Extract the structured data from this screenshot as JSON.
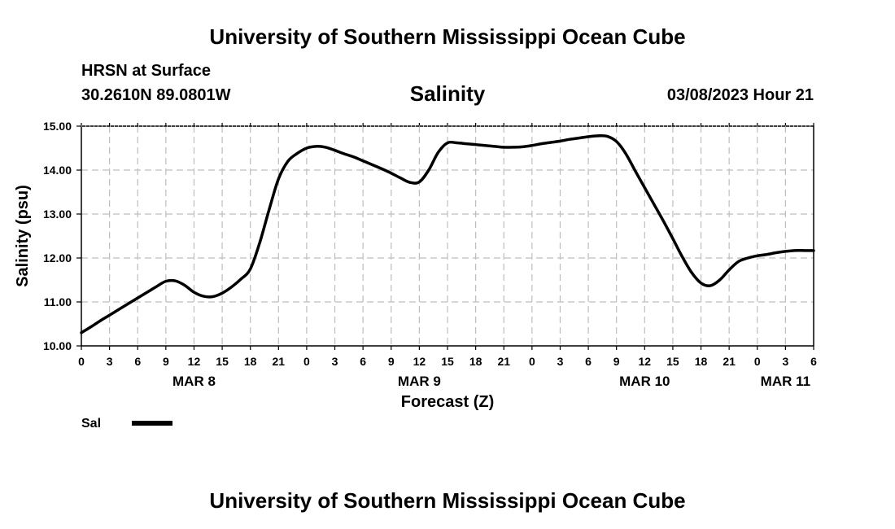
{
  "header": {
    "title": "University of Southern Mississippi Ocean Cube",
    "station": "HRSN at Surface",
    "coordinates": "30.2610N  89.0801W",
    "run_time": "03/08/2023 Hour 21"
  },
  "footer": {
    "title": "University of Southern Mississippi Ocean Cube"
  },
  "chart_data": {
    "type": "line",
    "title": "Salinity",
    "xlabel": "Forecast (Z)",
    "ylabel": "Salinity (psu)",
    "x_unit": "hours from 00Z MAR 8",
    "xlim": [
      0,
      78
    ],
    "ylim": [
      10.0,
      15.0
    ],
    "grid": true,
    "y_ticks": [
      "10.00",
      "11.00",
      "12.00",
      "13.00",
      "14.00",
      "15.00"
    ],
    "x_ticks": [
      {
        "x": 0,
        "label": "0"
      },
      {
        "x": 3,
        "label": "3"
      },
      {
        "x": 6,
        "label": "6"
      },
      {
        "x": 9,
        "label": "9"
      },
      {
        "x": 12,
        "label": "12"
      },
      {
        "x": 15,
        "label": "15"
      },
      {
        "x": 18,
        "label": "18"
      },
      {
        "x": 21,
        "label": "21"
      },
      {
        "x": 24,
        "label": "0"
      },
      {
        "x": 27,
        "label": "3"
      },
      {
        "x": 30,
        "label": "6"
      },
      {
        "x": 33,
        "label": "9"
      },
      {
        "x": 36,
        "label": "12"
      },
      {
        "x": 39,
        "label": "15"
      },
      {
        "x": 42,
        "label": "18"
      },
      {
        "x": 45,
        "label": "21"
      },
      {
        "x": 48,
        "label": "0"
      },
      {
        "x": 51,
        "label": "3"
      },
      {
        "x": 54,
        "label": "6"
      },
      {
        "x": 57,
        "label": "9"
      },
      {
        "x": 60,
        "label": "12"
      },
      {
        "x": 63,
        "label": "15"
      },
      {
        "x": 66,
        "label": "18"
      },
      {
        "x": 69,
        "label": "21"
      },
      {
        "x": 72,
        "label": "0"
      },
      {
        "x": 75,
        "label": "3"
      },
      {
        "x": 78,
        "label": "6"
      }
    ],
    "date_labels": [
      {
        "x": 12,
        "label": "MAR 8"
      },
      {
        "x": 36,
        "label": "MAR 9"
      },
      {
        "x": 60,
        "label": "MAR 10"
      },
      {
        "x": 75,
        "label": "MAR 11"
      }
    ],
    "series": [
      {
        "name": "Sal",
        "color": "#000000",
        "x": [
          0,
          1,
          2,
          3,
          4,
          5,
          6,
          7,
          8,
          9,
          10,
          11,
          12,
          13,
          14,
          15,
          16,
          17,
          18,
          19,
          20,
          21,
          22,
          23,
          24,
          25,
          26,
          27,
          28,
          29,
          30,
          31,
          32,
          33,
          34,
          35,
          36,
          37,
          38,
          39,
          40,
          41,
          42,
          43,
          44,
          45,
          46,
          47,
          48,
          49,
          50,
          51,
          52,
          53,
          54,
          55,
          56,
          57,
          58,
          59,
          60,
          61,
          62,
          63,
          64,
          65,
          66,
          67,
          68,
          69,
          70,
          71,
          72,
          73,
          74,
          75,
          76,
          77,
          78
        ],
        "values": [
          10.3,
          10.43,
          10.57,
          10.7,
          10.83,
          10.96,
          11.09,
          11.22,
          11.35,
          11.47,
          11.48,
          11.38,
          11.22,
          11.13,
          11.12,
          11.2,
          11.34,
          11.52,
          11.75,
          12.35,
          13.1,
          13.8,
          14.2,
          14.38,
          14.5,
          14.54,
          14.52,
          14.45,
          14.37,
          14.3,
          14.21,
          14.12,
          14.03,
          13.93,
          13.82,
          13.72,
          13.73,
          14.0,
          14.4,
          14.62,
          14.62,
          14.6,
          14.58,
          14.56,
          14.54,
          14.52,
          14.52,
          14.53,
          14.56,
          14.6,
          14.63,
          14.66,
          14.7,
          14.73,
          14.76,
          14.78,
          14.77,
          14.65,
          14.37,
          13.98,
          13.6,
          13.22,
          12.84,
          12.44,
          12.03,
          11.67,
          11.43,
          11.37,
          11.5,
          11.73,
          11.92,
          12.0,
          12.05,
          12.08,
          12.12,
          12.15,
          12.17,
          12.17,
          12.17
        ]
      }
    ],
    "legend": [
      {
        "label": "Sal",
        "position": "bottom-left"
      }
    ]
  }
}
